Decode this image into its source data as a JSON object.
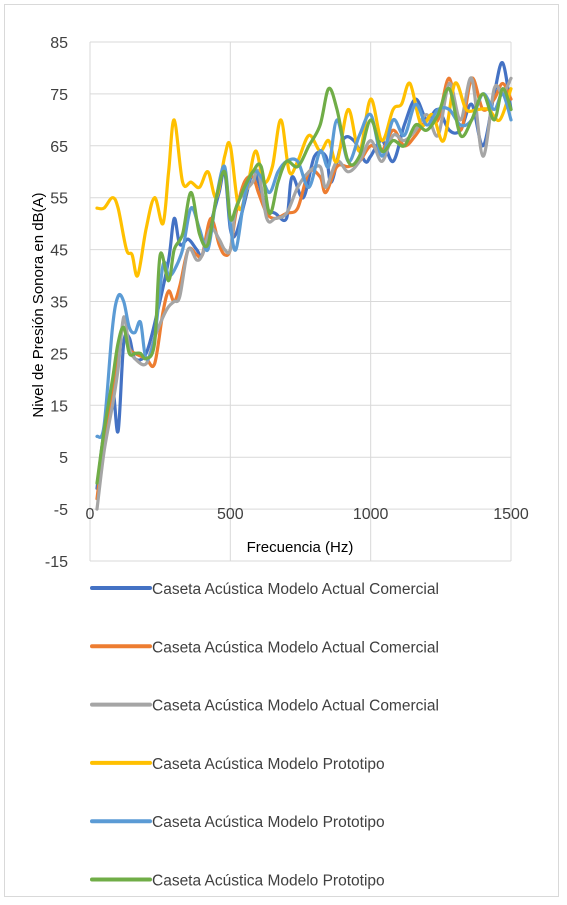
{
  "chart_data": {
    "type": "line",
    "title": "",
    "xlabel": "Frecuencia (Hz)",
    "ylabel": "Nivel de Presión Sonora en dB(A)",
    "xlim": [
      0,
      1500
    ],
    "ylim": [
      -15,
      85
    ],
    "x_ticks": [
      0,
      500,
      1000,
      1500
    ],
    "y_ticks": [
      85,
      75,
      65,
      55,
      45,
      35,
      25,
      15,
      5,
      -5,
      -15
    ],
    "grid": true,
    "legend_position": "bottom",
    "series": [
      {
        "name": "Caseta Acústica Modelo Actual Comercial",
        "color": "#4472c4",
        "x": [
          25,
          50,
          80,
          100,
          120,
          140,
          160,
          200,
          240,
          280,
          300,
          320,
          350,
          380,
          400,
          430,
          460,
          480,
          500,
          520,
          550,
          580,
          600,
          630,
          660,
          700,
          720,
          760,
          800,
          840,
          860,
          900,
          940,
          980,
          1000,
          1040,
          1080,
          1120,
          1160,
          1200,
          1240,
          1280,
          1320,
          1360,
          1400,
          1440,
          1470,
          1500
        ],
        "y": [
          -1,
          10,
          18,
          10,
          27,
          28,
          24,
          25,
          33,
          43,
          51,
          46,
          47,
          45,
          44,
          50,
          56,
          60,
          49,
          48,
          54,
          60,
          58,
          53,
          52,
          51,
          59,
          55,
          63,
          63,
          58,
          66,
          66,
          62,
          63,
          66,
          62,
          69,
          74,
          70,
          72,
          68,
          68,
          73,
          65,
          75,
          81,
          72
        ]
      },
      {
        "name": "Caseta Acústica Modelo Actual Comercial",
        "color": "#ed7d31",
        "x": [
          25,
          50,
          80,
          100,
          120,
          140,
          160,
          200,
          230,
          260,
          280,
          300,
          320,
          350,
          380,
          400,
          430,
          460,
          480,
          500,
          520,
          550,
          580,
          600,
          630,
          660,
          700,
          740,
          780,
          820,
          840,
          880,
          920,
          960,
          1000,
          1040,
          1080,
          1120,
          1160,
          1200,
          1240,
          1280,
          1320,
          1360,
          1400,
          1440,
          1470,
          1500
        ],
        "y": [
          -3,
          8,
          17,
          26,
          30,
          26,
          25,
          24,
          23,
          33,
          37,
          35,
          38,
          45,
          44,
          44,
          51,
          46,
          44,
          45,
          52,
          58,
          59,
          56,
          52,
          51,
          52,
          53,
          60,
          59,
          56,
          61,
          61,
          62,
          65,
          64,
          68,
          65,
          67,
          70,
          70,
          78,
          68,
          78,
          72,
          74,
          77,
          74
        ]
      },
      {
        "name": "Caseta Acústica Modelo Actual Comercial",
        "color": "#a5a5a5",
        "x": [
          25,
          50,
          80,
          100,
          120,
          140,
          160,
          200,
          230,
          260,
          280,
          300,
          320,
          350,
          380,
          400,
          430,
          460,
          480,
          500,
          520,
          550,
          580,
          600,
          630,
          660,
          700,
          740,
          780,
          820,
          840,
          880,
          920,
          960,
          1000,
          1040,
          1080,
          1120,
          1160,
          1200,
          1240,
          1280,
          1320,
          1360,
          1400,
          1440,
          1470,
          1500
        ],
        "y": [
          -5,
          6,
          15,
          22,
          32,
          26,
          24,
          23,
          28,
          32,
          34,
          35,
          36,
          45,
          43,
          44,
          49,
          47,
          45,
          45,
          53,
          56,
          58,
          60,
          51,
          51,
          52,
          57,
          60,
          61,
          57,
          62,
          60,
          62,
          66,
          62,
          67,
          66,
          68,
          71,
          67,
          77,
          70,
          78,
          63,
          76,
          75,
          78
        ]
      },
      {
        "name": "Caseta Acústica Modelo Prototipo",
        "color": "#ffc000",
        "x": [
          25,
          50,
          80,
          100,
          130,
          150,
          170,
          200,
          230,
          260,
          280,
          300,
          330,
          360,
          390,
          420,
          450,
          480,
          500,
          530,
          560,
          590,
          620,
          650,
          680,
          710,
          740,
          780,
          820,
          850,
          880,
          920,
          960,
          1000,
          1040,
          1080,
          1110,
          1140,
          1180,
          1220,
          1260,
          1300,
          1340,
          1380,
          1420,
          1460,
          1500
        ],
        "y": [
          53,
          53,
          55,
          53,
          45,
          44,
          40,
          49,
          55,
          50,
          60,
          70,
          58,
          58,
          57,
          60,
          55,
          63,
          65,
          53,
          57,
          64,
          58,
          61,
          70,
          60,
          62,
          67,
          64,
          66,
          62,
          72,
          64,
          74,
          66,
          72,
          73,
          77,
          69,
          71,
          66,
          77,
          72,
          72,
          72,
          70,
          76
        ]
      },
      {
        "name": "Caseta Acústica Modelo Prototipo",
        "color": "#5b9bd5",
        "x": [
          25,
          50,
          80,
          100,
          120,
          140,
          160,
          180,
          200,
          230,
          260,
          280,
          300,
          330,
          360,
          390,
          420,
          450,
          480,
          500,
          520,
          550,
          580,
          610,
          640,
          670,
          700,
          740,
          780,
          820,
          850,
          880,
          920,
          960,
          1000,
          1040,
          1080,
          1120,
          1160,
          1200,
          1240,
          1280,
          1320,
          1360,
          1400,
          1440,
          1470,
          1500
        ],
        "y": [
          9,
          11,
          30,
          36,
          35,
          30,
          29,
          31,
          24,
          28,
          42,
          40,
          41,
          45,
          53,
          49,
          45,
          55,
          61,
          50,
          45,
          55,
          60,
          59,
          56,
          60,
          62,
          62,
          57,
          64,
          61,
          70,
          62,
          67,
          71,
          63,
          70,
          67,
          73,
          69,
          72,
          72,
          69,
          70,
          75,
          72,
          75,
          70
        ]
      },
      {
        "name": "Caseta Acústica Modelo Prototipo",
        "color": "#70ad47",
        "x": [
          25,
          50,
          80,
          100,
          120,
          140,
          160,
          180,
          200,
          230,
          250,
          280,
          300,
          330,
          360,
          390,
          420,
          450,
          480,
          500,
          520,
          550,
          580,
          610,
          640,
          670,
          700,
          740,
          780,
          820,
          850,
          880,
          920,
          960,
          1000,
          1040,
          1080,
          1120,
          1160,
          1200,
          1240,
          1280,
          1320,
          1360,
          1400,
          1440,
          1470,
          1500
        ],
        "y": [
          0,
          10,
          20,
          27,
          30,
          25,
          25,
          25,
          24,
          27,
          44,
          39,
          45,
          48,
          56,
          48,
          46,
          55,
          60,
          51,
          53,
          57,
          60,
          61,
          52,
          58,
          62,
          61,
          65,
          69,
          76,
          72,
          62,
          63,
          70,
          64,
          66,
          65,
          69,
          68,
          71,
          76,
          67,
          70,
          75,
          70,
          76,
          72
        ]
      }
    ]
  }
}
